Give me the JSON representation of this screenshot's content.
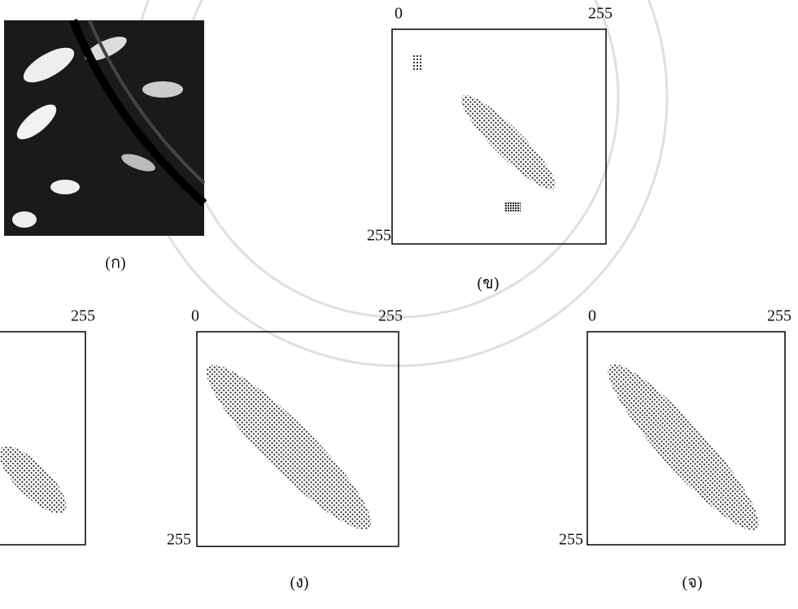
{
  "panels": [
    {
      "caption": "(ก)"
    },
    {
      "caption": "(ข)",
      "axis_start": "0",
      "axis_end": "255",
      "axis_side": "255"
    },
    {
      "axis_end": "255"
    },
    {
      "caption": "(ง)",
      "axis_start": "0",
      "axis_end": "255",
      "axis_side": "255"
    },
    {
      "caption": "(จ)",
      "axis_start": "0",
      "axis_end": "255",
      "axis_side": "255"
    }
  ]
}
